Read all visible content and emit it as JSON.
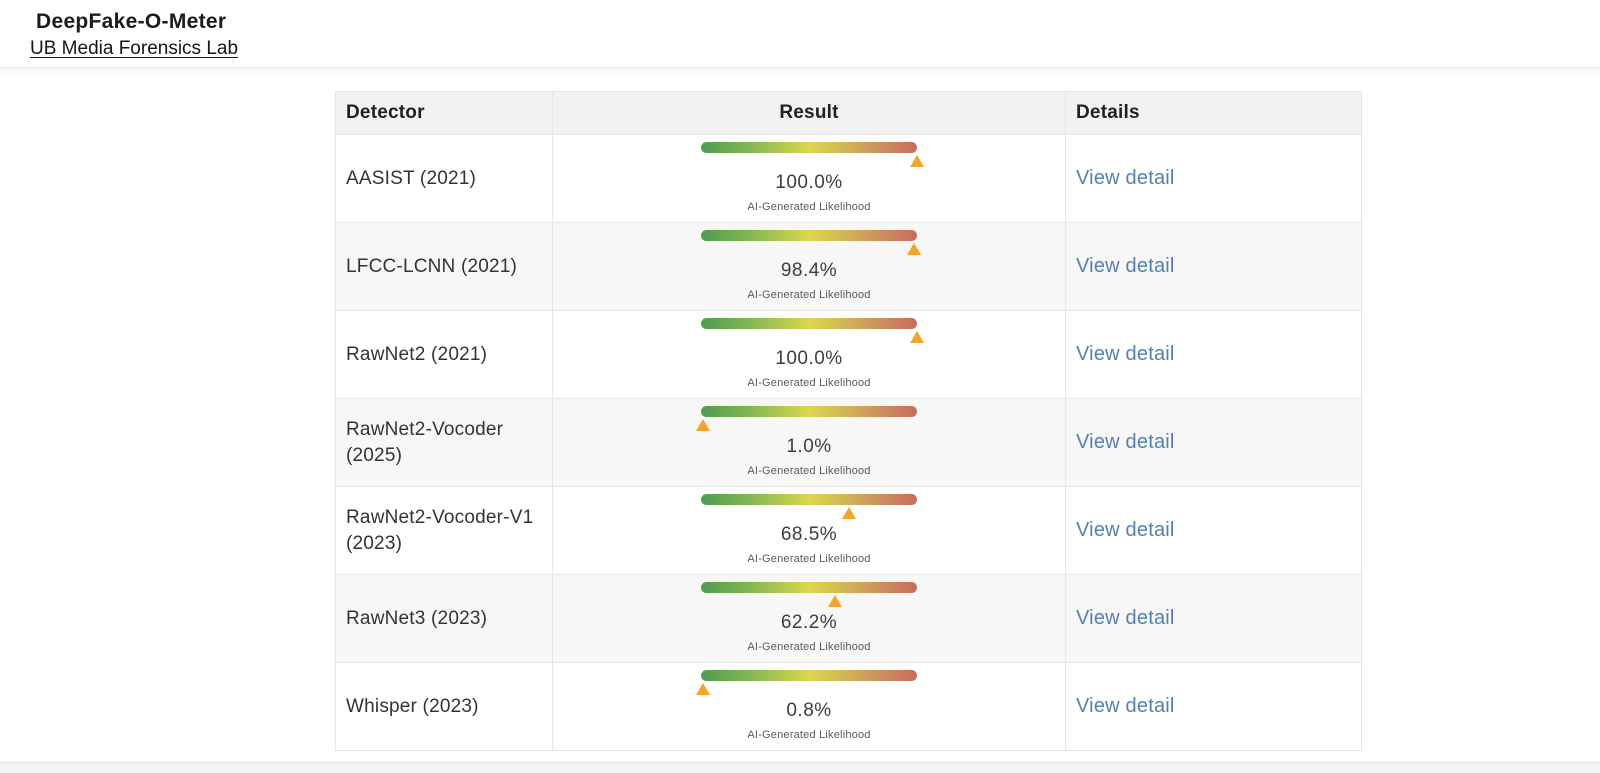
{
  "app": {
    "title": "DeepFake-O-Meter",
    "lab_link": "UB Media Forensics Lab"
  },
  "table": {
    "columns": [
      "Detector",
      "Result",
      "Details"
    ],
    "likelihood_label": "AI-Generated Likelihood",
    "detail_link_label": "View detail",
    "rows": [
      {
        "name": "AASIST (2021)",
        "value_pct": 100.0,
        "value_label": "100.0%"
      },
      {
        "name": "LFCC-LCNN (2021)",
        "value_pct": 98.4,
        "value_label": "98.4%"
      },
      {
        "name": "RawNet2 (2021)",
        "value_pct": 100.0,
        "value_label": "100.0%"
      },
      {
        "name": "RawNet2-Vocoder (2025)",
        "value_pct": 1.0,
        "value_label": "1.0%"
      },
      {
        "name": "RawNet2-Vocoder-V1 (2023)",
        "value_pct": 68.5,
        "value_label": "68.5%"
      },
      {
        "name": "RawNet3 (2023)",
        "value_pct": 62.2,
        "value_label": "62.2%"
      },
      {
        "name": "Whisper (2023)",
        "value_pct": 0.8,
        "value_label": "0.8%"
      }
    ]
  },
  "colors": {
    "gradient_start": "#4f9b52",
    "gradient_mid": "#d8d84e",
    "gradient_end": "#c96a60",
    "marker": "#f7a329",
    "link": "#537fb3"
  }
}
